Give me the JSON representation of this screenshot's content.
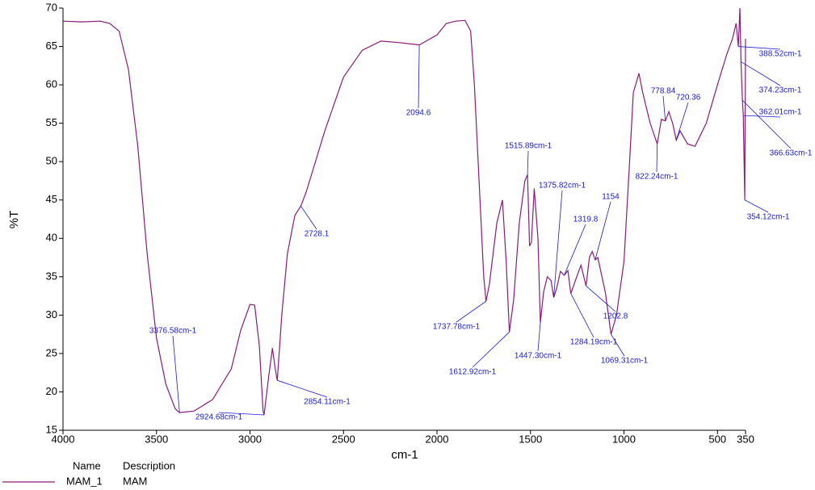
{
  "chart_data": {
    "type": "line",
    "ylabel": "%T",
    "xlabel": "cm-1",
    "xlim": [
      4000,
      350
    ],
    "ylim": [
      15,
      70
    ],
    "xticks": [
      4000,
      3500,
      3000,
      2500,
      2000,
      1500,
      1000,
      500,
      350
    ],
    "yticks": [
      15,
      20,
      25,
      30,
      35,
      40,
      45,
      50,
      55,
      60,
      65,
      70
    ],
    "x": [
      4000,
      3900,
      3800,
      3750,
      3700,
      3650,
      3600,
      3550,
      3500,
      3450,
      3400,
      3376.58,
      3300,
      3200,
      3100,
      3050,
      3000,
      2975,
      2950,
      2930,
      2924.68,
      2900,
      2880,
      2865,
      2854.11,
      2830,
      2800,
      2760,
      2728.1,
      2700,
      2600,
      2500,
      2400,
      2300,
      2200,
      2094.6,
      2000,
      1950,
      1900,
      1850,
      1820,
      1800,
      1770,
      1750,
      1737.78,
      1720,
      1680,
      1650,
      1630,
      1612.92,
      1590,
      1560,
      1530,
      1515.89,
      1505,
      1495,
      1480,
      1460,
      1447.3,
      1430,
      1410,
      1390,
      1375.82,
      1360,
      1340,
      1319.8,
      1300,
      1284.19,
      1260,
      1230,
      1202.8,
      1185,
      1170,
      1154,
      1140,
      1100,
      1069.31,
      1040,
      1000,
      970,
      950,
      920,
      900,
      860,
      822.24,
      800,
      778.84,
      760,
      740,
      720.36,
      700,
      660,
      620,
      560,
      500,
      450,
      420,
      400,
      388.52,
      380,
      374.23,
      366.63,
      362.01,
      354.12,
      350
    ],
    "series": [
      {
        "name": "MAM_1",
        "description": "MAM",
        "color": "#8b1a7a",
        "values": [
          68.3,
          68.2,
          68.3,
          68.0,
          67.0,
          62,
          52,
          38,
          27,
          21,
          17.8,
          17.3,
          17.5,
          19,
          23,
          28,
          31.4,
          31.3,
          26,
          17.5,
          17.0,
          22,
          25.7,
          23,
          21.5,
          30,
          38,
          43,
          44.2,
          46,
          54,
          61,
          64.5,
          65.7,
          65.5,
          65.2,
          66.5,
          68,
          68.3,
          68.4,
          67,
          60,
          45,
          35,
          31.8,
          34,
          42,
          45,
          37,
          27.8,
          32,
          42,
          47.5,
          48.3,
          39,
          39.5,
          46.5,
          40,
          29,
          33,
          35,
          34.5,
          32.3,
          33.5,
          35.7,
          35.2,
          35.8,
          32.8,
          34.5,
          36.5,
          33.8,
          37.5,
          38.3,
          37.2,
          37.5,
          33,
          27.5,
          30,
          37,
          50,
          59,
          61.5,
          59,
          55,
          52.3,
          55.5,
          55.3,
          56.5,
          55,
          52.8,
          54,
          52.3,
          52,
          55,
          60,
          64,
          66,
          68,
          65,
          70,
          63,
          58,
          56,
          45,
          66
        ]
      }
    ],
    "legend": {
      "headers": [
        "Name",
        "Description"
      ]
    },
    "annotations": [
      {
        "x": 3376.58,
        "label": "3376.58cm-1"
      },
      {
        "x": 2924.68,
        "label": "2924.68cm-1"
      },
      {
        "x": 2854.11,
        "label": "2854.11cm-1"
      },
      {
        "x": 2728.1,
        "label": "2728.1"
      },
      {
        "x": 2094.6,
        "label": "2094.6"
      },
      {
        "x": 1737.78,
        "label": "1737.78cm-1"
      },
      {
        "x": 1612.92,
        "label": "1612.92cm-1"
      },
      {
        "x": 1515.89,
        "label": "1515.89cm-1"
      },
      {
        "x": 1447.3,
        "label": "1447.30cm-1"
      },
      {
        "x": 1375.82,
        "label": "1375.82cm-1"
      },
      {
        "x": 1319.8,
        "label": "1319.8"
      },
      {
        "x": 1284.19,
        "label": "1284.19cm-1"
      },
      {
        "x": 1202.8,
        "label": "1202.8"
      },
      {
        "x": 1154,
        "label": "1154"
      },
      {
        "x": 1069.31,
        "label": "1069.31cm-1"
      },
      {
        "x": 822.24,
        "label": "822.24cm-1"
      },
      {
        "x": 778.84,
        "label": "778.84"
      },
      {
        "x": 720.36,
        "label": "720.36"
      },
      {
        "x": 388.52,
        "label": "388.52cm-1"
      },
      {
        "x": 374.23,
        "label": "374.23cm-1"
      },
      {
        "x": 362.01,
        "label": "362.01cm-1"
      },
      {
        "x": 366.63,
        "label": "366.63cm-1"
      },
      {
        "x": 354.12,
        "label": "354.12cm-1"
      }
    ]
  }
}
